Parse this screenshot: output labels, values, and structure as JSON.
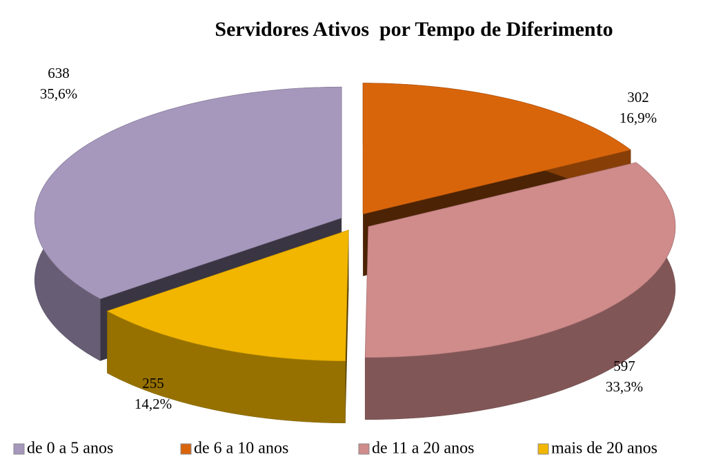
{
  "chart_data": {
    "type": "pie3d",
    "title": "Servidores Ativos  por Tempo de Diferimento",
    "categories": [
      "de 0 a 5 anos",
      "de 6 a 10 anos",
      "de 11 a 20 anos",
      "mais de 20 anos"
    ],
    "values": [
      638,
      302,
      597,
      255
    ],
    "percentages": [
      35.6,
      16.9,
      33.3,
      14.2
    ],
    "percentage_labels": [
      "35,6%",
      "16,9%",
      "33,3%",
      "14,2%"
    ],
    "colors": [
      "#a698bd",
      "#d9650b",
      "#d08b8b",
      "#f2b600"
    ],
    "legend": "bottom"
  }
}
